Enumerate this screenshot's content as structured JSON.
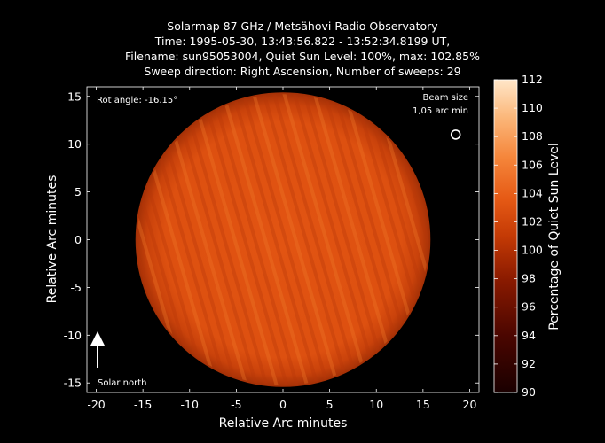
{
  "chart_data": {
    "type": "heatmap",
    "title_lines": [
      "Solarmap 87 GHz / Metsähovi Radio Observatory",
      "Time: 1995-05-30, 13:43:56.822 - 13:52:34.8199 UT,",
      "Filename: sun95053004, Quiet Sun Level: 100%, max: 102.85%",
      "Sweep direction: Right Ascension, Number of sweeps: 29"
    ],
    "xlabel": "Relative Arc minutes",
    "ylabel": "Relative Arc minutes",
    "xlim": [
      -21,
      21
    ],
    "ylim": [
      -16,
      16
    ],
    "x_ticks": [
      -20,
      -15,
      -10,
      -5,
      0,
      5,
      10,
      15,
      20
    ],
    "y_ticks": [
      -15,
      -10,
      -5,
      0,
      5,
      10,
      15
    ],
    "colorbar": {
      "label": "Percentage of Quiet Sun Level",
      "range": [
        90,
        112
      ],
      "ticks": [
        90,
        92,
        94,
        96,
        98,
        100,
        102,
        104,
        106,
        108,
        110,
        112
      ]
    },
    "disk": {
      "center": [
        0,
        0
      ],
      "radius_arcmin": 15.8,
      "level_percent": 100
    },
    "annotations": {
      "rot_angle": "Rot angle: -16.15°",
      "beam_size_line1": "Beam size",
      "beam_size_line2": "1,05 arc min",
      "solar_north": "Solar north"
    },
    "beam_marker": {
      "x": 18.5,
      "y": 11
    },
    "grid": false
  }
}
